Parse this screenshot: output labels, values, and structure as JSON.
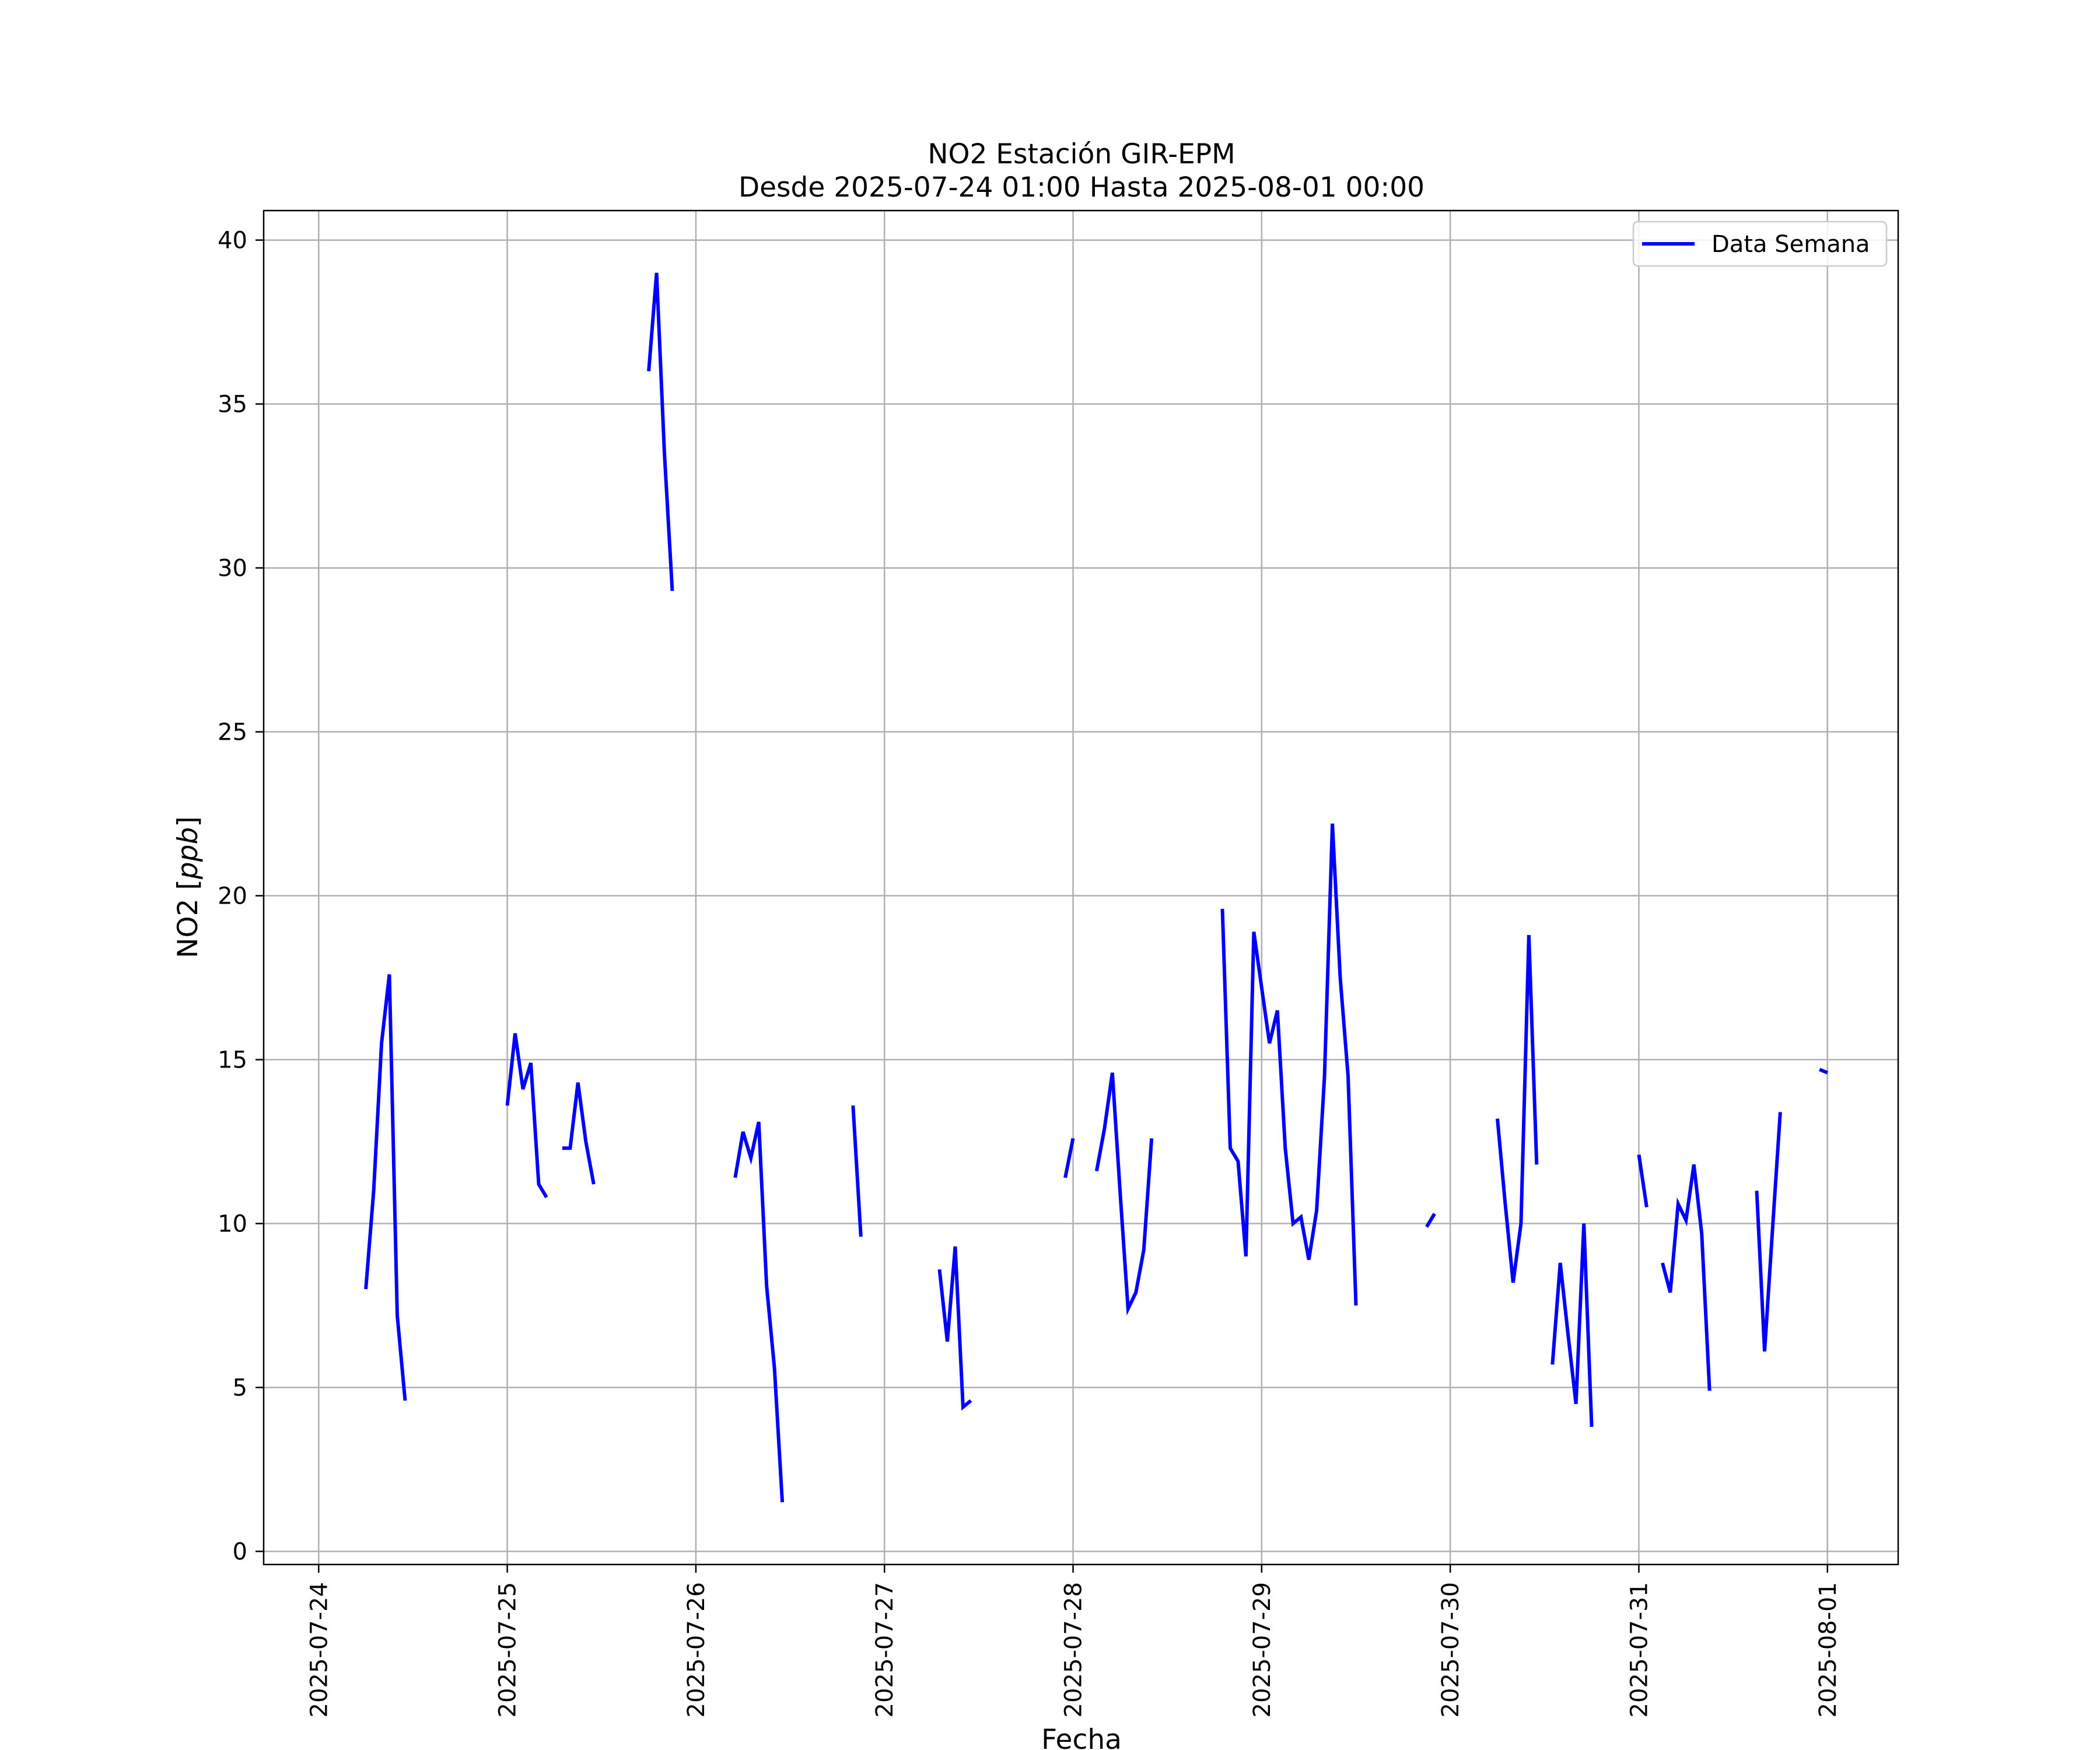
{
  "chart_data": {
    "type": "line",
    "title": "NO2 Estación GIR-EPM",
    "subtitle": "Desde 2025-07-24 01:00 Hasta 2025-08-01 00:00",
    "xlabel": "Fecha",
    "ylabel": "NO2 [ppb]",
    "ylabel_parts": {
      "prefix": "NO2 [",
      "unit": "ppb",
      "suffix": "]"
    },
    "xlim": [
      "2025-07-23 17:00",
      "2025-08-01 09:00"
    ],
    "ylim": [
      -0.4,
      40.9
    ],
    "x_ticks": [
      "2025-07-24",
      "2025-07-25",
      "2025-07-26",
      "2025-07-27",
      "2025-07-28",
      "2025-07-29",
      "2025-07-30",
      "2025-07-31",
      "2025-08-01"
    ],
    "y_ticks": [
      "0",
      "5",
      "10",
      "15",
      "20",
      "25",
      "30",
      "35",
      "40"
    ],
    "grid": true,
    "legend_position": "top-right",
    "line_color": "#0000ff",
    "series": [
      {
        "name": "Data Semana",
        "segments": [
          [
            [
              "2025-07-24 06:00",
              8.0
            ],
            [
              "2025-07-24 07:00",
              11.0
            ],
            [
              "2025-07-24 08:00",
              15.5
            ],
            [
              "2025-07-24 09:00",
              17.6
            ],
            [
              "2025-07-24 10:00",
              7.2
            ],
            [
              "2025-07-24 11:00",
              4.6
            ]
          ],
          [
            [
              "2025-07-25 00:00",
              13.6
            ],
            [
              "2025-07-25 01:00",
              15.8
            ],
            [
              "2025-07-25 02:00",
              14.1
            ],
            [
              "2025-07-25 03:00",
              14.9
            ],
            [
              "2025-07-25 04:00",
              11.2
            ],
            [
              "2025-07-25 05:00",
              10.8
            ]
          ],
          [
            [
              "2025-07-25 07:00",
              12.3
            ],
            [
              "2025-07-25 08:00",
              12.3
            ],
            [
              "2025-07-25 09:00",
              14.3
            ],
            [
              "2025-07-25 10:00",
              12.5
            ],
            [
              "2025-07-25 11:00",
              11.2
            ]
          ],
          [
            [
              "2025-07-25 18:00",
              36.0
            ],
            [
              "2025-07-25 19:00",
              39.0
            ],
            [
              "2025-07-25 20:00",
              33.5
            ],
            [
              "2025-07-25 21:00",
              29.3
            ]
          ],
          [
            [
              "2025-07-26 05:00",
              11.4
            ],
            [
              "2025-07-26 06:00",
              12.8
            ],
            [
              "2025-07-26 07:00",
              12.0
            ],
            [
              "2025-07-26 08:00",
              13.1
            ],
            [
              "2025-07-26 09:00",
              8.1
            ],
            [
              "2025-07-26 10:00",
              5.6
            ],
            [
              "2025-07-26 11:00",
              1.5
            ]
          ],
          [
            [
              "2025-07-26 20:00",
              13.6
            ],
            [
              "2025-07-26 21:00",
              9.6
            ]
          ],
          [
            [
              "2025-07-27 07:00",
              8.6
            ],
            [
              "2025-07-27 08:00",
              6.4
            ],
            [
              "2025-07-27 09:00",
              9.3
            ],
            [
              "2025-07-27 10:00",
              4.4
            ],
            [
              "2025-07-27 11:00",
              4.6
            ]
          ],
          [
            [
              "2025-07-27 23:00",
              11.4
            ],
            [
              "2025-07-28 00:00",
              12.6
            ]
          ],
          [
            [
              "2025-07-28 03:00",
              11.6
            ],
            [
              "2025-07-28 04:00",
              12.9
            ],
            [
              "2025-07-28 05:00",
              14.6
            ],
            [
              "2025-07-28 06:00",
              10.9
            ],
            [
              "2025-07-28 07:00",
              7.4
            ],
            [
              "2025-07-28 08:00",
              7.9
            ],
            [
              "2025-07-28 09:00",
              9.2
            ],
            [
              "2025-07-28 10:00",
              12.6
            ]
          ],
          [
            [
              "2025-07-28 19:00",
              19.6
            ],
            [
              "2025-07-28 20:00",
              12.3
            ],
            [
              "2025-07-28 21:00",
              11.9
            ],
            [
              "2025-07-28 22:00",
              9.0
            ],
            [
              "2025-07-28 23:00",
              18.9
            ],
            [
              "2025-07-29 00:00",
              17.2
            ],
            [
              "2025-07-29 01:00",
              15.5
            ],
            [
              "2025-07-29 02:00",
              16.5
            ],
            [
              "2025-07-29 03:00",
              12.3
            ],
            [
              "2025-07-29 04:00",
              10.0
            ],
            [
              "2025-07-29 05:00",
              10.2
            ],
            [
              "2025-07-29 06:00",
              8.9
            ],
            [
              "2025-07-29 07:00",
              10.4
            ],
            [
              "2025-07-29 08:00",
              14.5
            ],
            [
              "2025-07-29 09:00",
              22.2
            ],
            [
              "2025-07-29 10:00",
              17.5
            ],
            [
              "2025-07-29 11:00",
              14.5
            ],
            [
              "2025-07-29 12:00",
              7.5
            ]
          ],
          [
            [
              "2025-07-29 21:00",
              9.9
            ],
            [
              "2025-07-29 22:00",
              10.3
            ]
          ],
          [
            [
              "2025-07-30 06:00",
              13.2
            ],
            [
              "2025-07-30 07:00",
              10.6
            ],
            [
              "2025-07-30 08:00",
              8.2
            ],
            [
              "2025-07-30 09:00",
              10.0
            ],
            [
              "2025-07-30 10:00",
              18.8
            ],
            [
              "2025-07-30 11:00",
              11.8
            ]
          ],
          [
            [
              "2025-07-30 13:00",
              5.7
            ],
            [
              "2025-07-30 14:00",
              8.8
            ],
            [
              "2025-07-30 15:00",
              6.6
            ],
            [
              "2025-07-30 16:00",
              4.5
            ],
            [
              "2025-07-30 17:00",
              10.0
            ],
            [
              "2025-07-30 18:00",
              3.8
            ]
          ],
          [
            [
              "2025-07-31 00:00",
              12.1
            ],
            [
              "2025-07-31 01:00",
              10.5
            ]
          ],
          [
            [
              "2025-07-31 03:00",
              8.8
            ],
            [
              "2025-07-31 04:00",
              7.9
            ],
            [
              "2025-07-31 05:00",
              10.6
            ],
            [
              "2025-07-31 06:00",
              10.1
            ],
            [
              "2025-07-31 07:00",
              11.8
            ],
            [
              "2025-07-31 08:00",
              9.7
            ],
            [
              "2025-07-31 09:00",
              4.9
            ]
          ],
          [
            [
              "2025-07-31 15:00",
              11.0
            ],
            [
              "2025-07-31 16:00",
              6.1
            ],
            [
              "2025-07-31 17:00",
              9.8
            ],
            [
              "2025-07-31 18:00",
              13.4
            ]
          ],
          [
            [
              "2025-07-31 23:00",
              14.7
            ],
            [
              "2025-08-01 00:00",
              14.6
            ]
          ]
        ]
      }
    ]
  }
}
